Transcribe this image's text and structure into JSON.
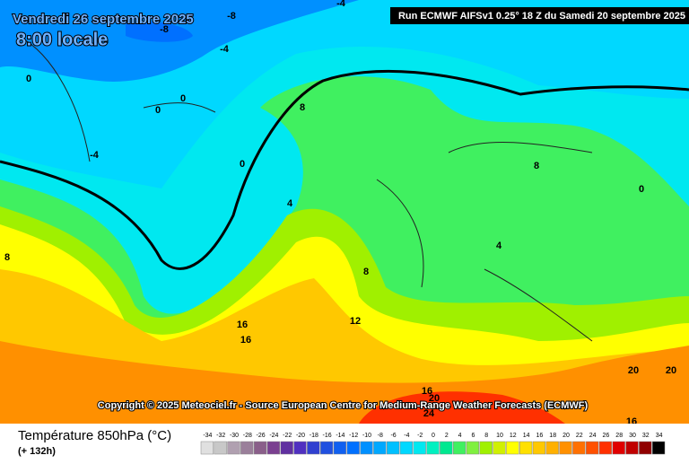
{
  "header": {
    "date": "Vendredi 26 septembre 2025",
    "time": "8:00 locale",
    "run": "Run ECMWF AIFSv1 0.25° 18 Z du Samedi 20 septembre 2025"
  },
  "contour_labels": [
    "-4",
    "-8",
    "-8",
    "-4",
    "0",
    "0",
    "0",
    "-4",
    "0",
    "8",
    "4",
    "8",
    "0",
    "4",
    "8",
    "8",
    "16",
    "16",
    "12",
    "16",
    "20",
    "24",
    "20",
    "20",
    "16"
  ],
  "copyright": "Copyright © 2025 Meteociel.fr - Source European Centre for Medium-Range Weather Forecasts (ECMWF)",
  "legend": {
    "title": "Température 850hPa (°C)",
    "subtitle": "(+ 132h)",
    "scale": [
      -34,
      -32,
      -30,
      -28,
      -26,
      -24,
      -22,
      -20,
      -18,
      -16,
      -14,
      -12,
      -10,
      -8,
      -6,
      -4,
      -2,
      0,
      2,
      4,
      6,
      8,
      10,
      12,
      14,
      16,
      18,
      20,
      22,
      24,
      26,
      28,
      30,
      32,
      34
    ],
    "colors": [
      "#e0e0e0",
      "#c8c8c8",
      "#b0a0b0",
      "#9a7f9a",
      "#8a5f8a",
      "#7a4090",
      "#6030a0",
      "#5030c0",
      "#3040d0",
      "#2050e0",
      "#1060f0",
      "#0070ff",
      "#0090ff",
      "#00a8ff",
      "#00c0ff",
      "#00d8ff",
      "#00e8f0",
      "#00f0c0",
      "#00e890",
      "#40f060",
      "#80f040",
      "#a0f000",
      "#d0f000",
      "#ffff00",
      "#ffe000",
      "#ffc800",
      "#ffb000",
      "#ff9000",
      "#ff7000",
      "#ff5000",
      "#ff3000",
      "#e00000",
      "#c00000",
      "#900000",
      "#000000"
    ]
  }
}
